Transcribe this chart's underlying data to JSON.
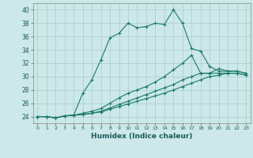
{
  "xlabel": "Humidex (Indice chaleur)",
  "background_color": "#cce8e8",
  "grid_color": "#aacccc",
  "line_color": "#1a7a6a",
  "xlim": [
    -0.5,
    23.5
  ],
  "ylim": [
    23,
    41
  ],
  "yticks": [
    24,
    26,
    28,
    30,
    32,
    34,
    36,
    38,
    40
  ],
  "xticks": [
    0,
    1,
    2,
    3,
    4,
    5,
    6,
    7,
    8,
    9,
    10,
    11,
    12,
    13,
    14,
    15,
    16,
    17,
    18,
    19,
    20,
    21,
    22,
    23
  ],
  "series": [
    [
      24.0,
      24.0,
      23.8,
      24.1,
      24.2,
      27.5,
      29.5,
      32.5,
      35.8,
      36.5,
      38.0,
      37.3,
      37.5,
      38.0,
      37.8,
      40.0,
      38.0,
      34.2,
      33.8,
      31.5,
      30.8,
      30.8,
      30.8,
      30.5
    ],
    [
      24.0,
      24.0,
      23.8,
      24.1,
      24.2,
      24.5,
      24.8,
      25.2,
      26.0,
      26.8,
      27.5,
      28.0,
      28.5,
      29.2,
      30.0,
      31.0,
      32.0,
      33.2,
      30.5,
      30.5,
      31.2,
      30.8,
      30.8,
      30.5
    ],
    [
      24.0,
      24.0,
      23.8,
      24.1,
      24.2,
      24.3,
      24.5,
      24.8,
      25.3,
      25.8,
      26.3,
      26.8,
      27.3,
      27.8,
      28.3,
      28.8,
      29.5,
      30.0,
      30.5,
      30.5,
      30.5,
      30.5,
      30.5,
      30.2
    ],
    [
      24.0,
      24.0,
      23.8,
      24.1,
      24.2,
      24.3,
      24.5,
      24.7,
      25.1,
      25.5,
      25.9,
      26.3,
      26.7,
      27.1,
      27.5,
      28.0,
      28.5,
      29.0,
      29.5,
      30.0,
      30.2,
      30.5,
      30.5,
      30.2
    ]
  ]
}
